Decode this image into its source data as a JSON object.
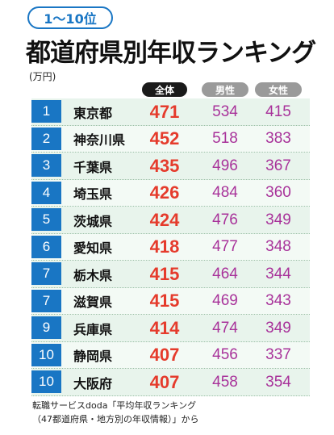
{
  "header": {
    "range_badge": "1～10位",
    "title": "都道府県別年収ランキング",
    "unit": "(万円)"
  },
  "columns": {
    "total": "全体",
    "male": "男性",
    "female": "女性"
  },
  "rows": [
    {
      "rank": "1",
      "prefecture": "東京都",
      "total": "471",
      "male": "534",
      "female": "415"
    },
    {
      "rank": "2",
      "prefecture": "神奈川県",
      "total": "452",
      "male": "518",
      "female": "383"
    },
    {
      "rank": "3",
      "prefecture": "千葉県",
      "total": "435",
      "male": "496",
      "female": "367"
    },
    {
      "rank": "4",
      "prefecture": "埼玉県",
      "total": "426",
      "male": "484",
      "female": "360"
    },
    {
      "rank": "5",
      "prefecture": "茨城県",
      "total": "424",
      "male": "476",
      "female": "349"
    },
    {
      "rank": "6",
      "prefecture": "愛知県",
      "total": "418",
      "male": "477",
      "female": "348"
    },
    {
      "rank": "7",
      "prefecture": "栃木県",
      "total": "415",
      "male": "464",
      "female": "344"
    },
    {
      "rank": "7",
      "prefecture": "滋賀県",
      "total": "415",
      "male": "469",
      "female": "343"
    },
    {
      "rank": "9",
      "prefecture": "兵庫県",
      "total": "414",
      "male": "474",
      "female": "349"
    },
    {
      "rank": "10",
      "prefecture": "静岡県",
      "total": "407",
      "male": "456",
      "female": "337"
    },
    {
      "rank": "10",
      "prefecture": "大阪府",
      "total": "407",
      "male": "458",
      "female": "354"
    }
  ],
  "source": {
    "line1": "転職サービスdoda「平均年収ランキング",
    "line2": "（47都道府県・地方別の年収情報）」から"
  },
  "colors": {
    "rank_bg": "#1976c4",
    "total_text": "#e53b2c",
    "gender_text": "#a8329a",
    "row_bg": "#e8f4ec"
  }
}
